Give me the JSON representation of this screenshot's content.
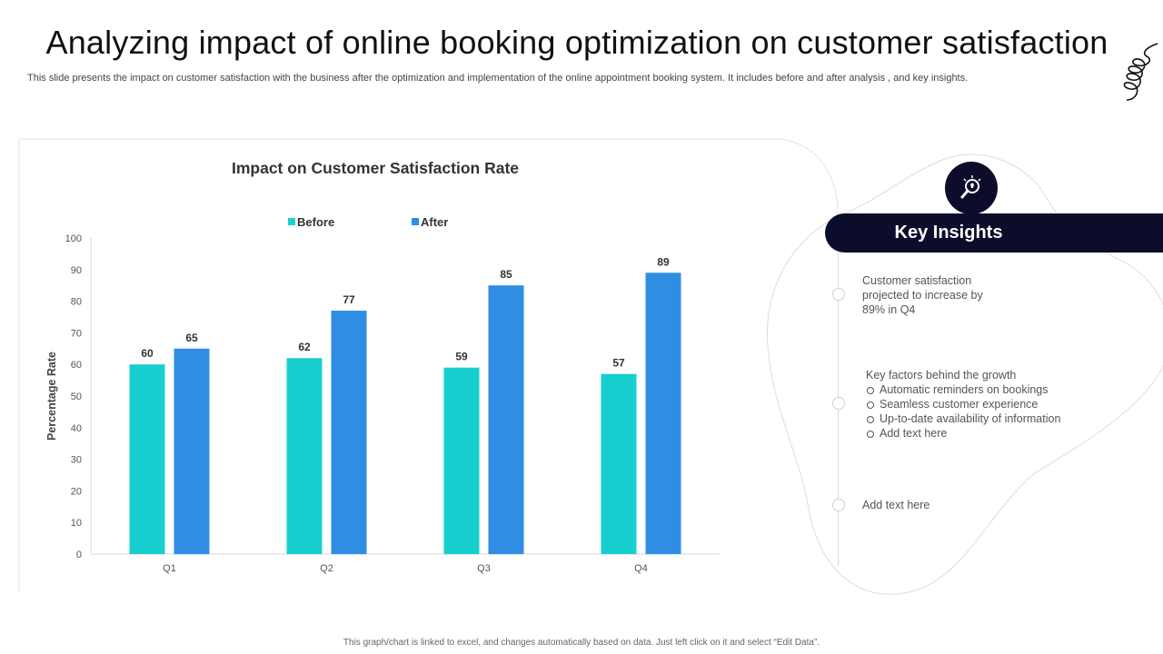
{
  "slide": {
    "title": "Analyzing  impact of online booking optimization on customer satisfaction",
    "subtitle": "This slide presents the impact on customer satisfaction with the business after the optimization and implementation of the online appointment booking system. It includes before and after analysis , and key insights.",
    "footer": "This graph/chart is linked to excel, and changes automatically based on data. Just left click on it and select “Edit Data”."
  },
  "chart_data": {
    "type": "bar",
    "title": "Impact on Customer Satisfaction Rate",
    "ylabel": "Percentage Rate",
    "xlabel": "",
    "categories": [
      "Q1",
      "Q2",
      "Q3",
      "Q4"
    ],
    "series": [
      {
        "name": "Before",
        "values": [
          60,
          62,
          59,
          57
        ],
        "color": "#17cfcf"
      },
      {
        "name": "After",
        "values": [
          65,
          77,
          85,
          89
        ],
        "color": "#2f8de4"
      }
    ],
    "ylim": [
      0,
      100
    ],
    "yticks": [
      "0",
      "10",
      "20",
      "30",
      "40",
      "50",
      "60",
      "70",
      "80",
      "90",
      "100"
    ],
    "grid": false,
    "legend": "top",
    "data_labels": true
  },
  "insights": {
    "header": "Key Insights",
    "icon": "lightbulb-magnifier-icon",
    "item1": "Customer satisfaction projected to increase by 89% in Q4",
    "item2_title": "Key factors behind the growth",
    "item2_bullets": [
      "Automatic reminders on bookings",
      "Seamless customer experience",
      "Up-to-date availability of information",
      "Add text here"
    ],
    "item3": "Add text here"
  },
  "colors": {
    "before": "#17cfcf",
    "after": "#2f8de4",
    "dark": "#0b0d2a"
  }
}
